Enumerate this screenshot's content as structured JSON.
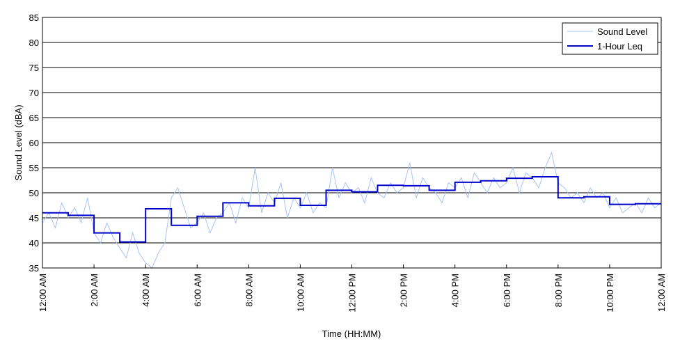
{
  "chart_data": {
    "type": "line",
    "title": "",
    "xlabel": "Time (HH:MM)",
    "ylabel": "Sound Level (dBA)",
    "ylim": [
      35,
      85
    ],
    "yticks": [
      35,
      40,
      45,
      50,
      55,
      60,
      65,
      70,
      75,
      80,
      85
    ],
    "xlim_hours": [
      0,
      24
    ],
    "xticks": [
      {
        "hour": 0,
        "label": "12:00 AM"
      },
      {
        "hour": 2,
        "label": "2:00 AM"
      },
      {
        "hour": 4,
        "label": "4:00 AM"
      },
      {
        "hour": 6,
        "label": "6:00 AM"
      },
      {
        "hour": 8,
        "label": "8:00 AM"
      },
      {
        "hour": 10,
        "label": "10:00 AM"
      },
      {
        "hour": 12,
        "label": "12:00 PM"
      },
      {
        "hour": 14,
        "label": "2:00 PM"
      },
      {
        "hour": 16,
        "label": "4:00 PM"
      },
      {
        "hour": 18,
        "label": "6:00 PM"
      },
      {
        "hour": 20,
        "label": "8:00 PM"
      },
      {
        "hour": 22,
        "label": "10:00 PM"
      },
      {
        "hour": 24,
        "label": "12:00 AM"
      }
    ],
    "grid": "horizontal",
    "legend": "top-right",
    "series": [
      {
        "name": "Sound Level",
        "color": "#a9c3f5",
        "style": "thin-line",
        "x_hours": [
          0,
          0.25,
          0.5,
          0.75,
          1,
          1.25,
          1.5,
          1.75,
          2,
          2.25,
          2.5,
          2.75,
          3,
          3.25,
          3.5,
          3.75,
          4,
          4.25,
          4.5,
          4.75,
          5,
          5.25,
          5.5,
          5.75,
          6,
          6.25,
          6.5,
          6.75,
          7,
          7.25,
          7.5,
          7.75,
          8,
          8.25,
          8.5,
          8.75,
          9,
          9.25,
          9.5,
          9.75,
          10,
          10.25,
          10.5,
          10.75,
          11,
          11.25,
          11.5,
          11.75,
          12,
          12.25,
          12.5,
          12.75,
          13,
          13.25,
          13.5,
          13.75,
          14,
          14.25,
          14.5,
          14.75,
          15,
          15.25,
          15.5,
          15.75,
          16,
          16.25,
          16.5,
          16.75,
          17,
          17.25,
          17.5,
          17.75,
          18,
          18.25,
          18.5,
          18.75,
          19,
          19.25,
          19.5,
          19.75,
          20,
          20.25,
          20.5,
          20.75,
          21,
          21.25,
          21.5,
          21.75,
          22,
          22.25,
          22.5,
          22.75,
          23,
          23.25,
          23.5,
          23.75,
          24
        ],
        "values": [
          44,
          46,
          43,
          48,
          45,
          47,
          44,
          49,
          42,
          40,
          44,
          41,
          39,
          37,
          42,
          38,
          36,
          35,
          38,
          40,
          49,
          51,
          47,
          43,
          44,
          46,
          42,
          45,
          46,
          48,
          44,
          49,
          47,
          55,
          46,
          50,
          48,
          52,
          45,
          49,
          47,
          50,
          46,
          48,
          47,
          55,
          49,
          52,
          50,
          51,
          48,
          53,
          50,
          49,
          52,
          50,
          51,
          56,
          49,
          53,
          51,
          50,
          48,
          52,
          51,
          53,
          49,
          54,
          52,
          50,
          53,
          51,
          52,
          55,
          50,
          54,
          53,
          51,
          55,
          58,
          52,
          51,
          49,
          50,
          48,
          51,
          49,
          50,
          47,
          49,
          46,
          47,
          48,
          46,
          49,
          47,
          48
        ]
      },
      {
        "name": "1-Hour Leq",
        "color": "#0000cc",
        "style": "step",
        "x_hours": [
          0,
          1,
          2,
          3,
          4,
          5,
          6,
          7,
          8,
          9,
          10,
          11,
          12,
          13,
          14,
          15,
          16,
          17,
          18,
          19,
          20,
          21,
          22,
          23
        ],
        "values": [
          46,
          45.5,
          42,
          40.2,
          46.8,
          43.5,
          45.3,
          48,
          47.4,
          48.9,
          47.5,
          50.5,
          50.2,
          51.5,
          51.4,
          50.5,
          52.1,
          52.4,
          52.9,
          53.2,
          49,
          49.2,
          47.7,
          47.8
        ]
      }
    ]
  }
}
